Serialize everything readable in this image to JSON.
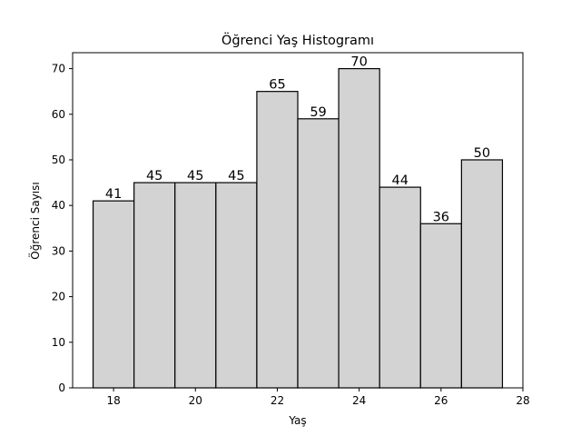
{
  "chart_data": {
    "type": "bar",
    "title": "Öğrenci Yaş Histogramı",
    "xlabel": "Yaş",
    "ylabel": "Öğrenci Sayısı",
    "bins": [
      {
        "left": 17.5,
        "right": 18.5,
        "value": 41
      },
      {
        "left": 18.5,
        "right": 19.5,
        "value": 45
      },
      {
        "left": 19.5,
        "right": 20.5,
        "value": 45
      },
      {
        "left": 20.5,
        "right": 21.5,
        "value": 45
      },
      {
        "left": 21.5,
        "right": 22.5,
        "value": 65
      },
      {
        "left": 22.5,
        "right": 23.5,
        "value": 59
      },
      {
        "left": 23.5,
        "right": 24.5,
        "value": 70
      },
      {
        "left": 24.5,
        "right": 25.5,
        "value": 44
      },
      {
        "left": 25.5,
        "right": 26.5,
        "value": 36
      },
      {
        "left": 26.5,
        "right": 27.5,
        "value": 50
      }
    ],
    "xlim": [
      17.0,
      28.0
    ],
    "ylim": [
      0,
      73.5
    ],
    "xticks": [
      18,
      20,
      22,
      24,
      26,
      28
    ],
    "yticks": [
      0,
      10,
      20,
      30,
      40,
      50,
      60,
      70
    ],
    "grid": false,
    "bar_color": "#d3d3d3",
    "edge_color": "#000000"
  }
}
